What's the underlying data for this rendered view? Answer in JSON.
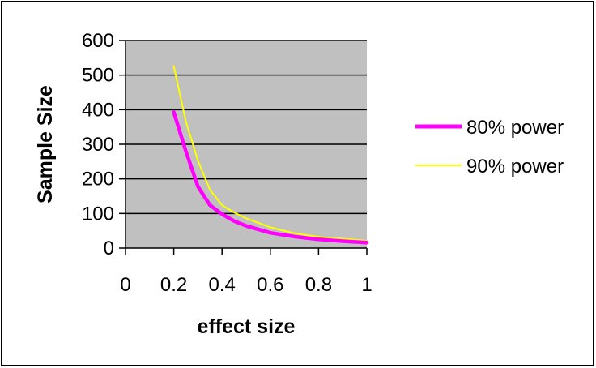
{
  "chart_data": {
    "type": "line",
    "xlabel": "effect size",
    "ylabel": "Sample Size",
    "xlim": [
      0,
      1
    ],
    "ylim": [
      0,
      600
    ],
    "x_ticks": [
      "0",
      "0.2",
      "0.4",
      "0.6",
      "0.8",
      "1"
    ],
    "y_ticks": [
      "0",
      "100",
      "200",
      "300",
      "400",
      "500",
      "600"
    ],
    "grid": "horizontal",
    "plot_background": "#c0c0c0",
    "legend_position": "right",
    "series": [
      {
        "name": "80% power",
        "color": "#ff00ff",
        "x": [
          0.2,
          0.25,
          0.3,
          0.35,
          0.4,
          0.45,
          0.5,
          0.6,
          0.7,
          0.8,
          0.9,
          1.0
        ],
        "values": [
          393,
          280,
          178,
          124,
          98,
          78,
          64,
          44,
          33,
          25,
          20,
          16
        ]
      },
      {
        "name": "90% power",
        "color": "#ffff00",
        "x": [
          0.2,
          0.25,
          0.3,
          0.35,
          0.4,
          0.45,
          0.5,
          0.6,
          0.7,
          0.8,
          0.9,
          1.0
        ],
        "values": [
          526,
          366,
          253,
          168,
          124,
          103,
          86,
          60,
          43,
          32,
          27,
          21
        ]
      }
    ]
  }
}
